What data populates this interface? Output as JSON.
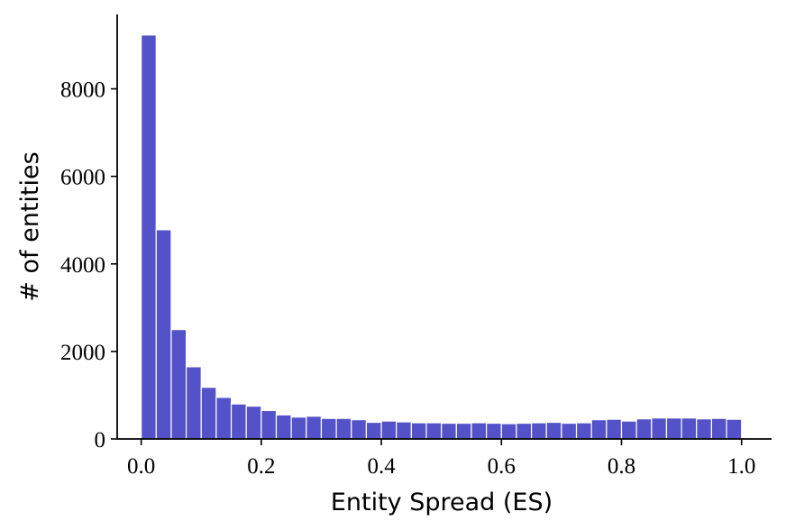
{
  "chart_data": {
    "type": "bar",
    "title": "",
    "xlabel": "Entity Spread (ES)",
    "ylabel": "# of entities",
    "bin_width": 0.025,
    "x": [
      0.0125,
      0.0375,
      0.0625,
      0.0875,
      0.1125,
      0.1375,
      0.1625,
      0.1875,
      0.2125,
      0.2375,
      0.2625,
      0.2875,
      0.3125,
      0.3375,
      0.3625,
      0.3875,
      0.4125,
      0.4375,
      0.4625,
      0.4875,
      0.5125,
      0.5375,
      0.5625,
      0.5875,
      0.6125,
      0.6375,
      0.6625,
      0.6875,
      0.7125,
      0.7375,
      0.7625,
      0.7875,
      0.8125,
      0.8375,
      0.8625,
      0.8875,
      0.9125,
      0.9375,
      0.9625,
      0.9875
    ],
    "values": [
      9230,
      4780,
      2500,
      1650,
      1180,
      950,
      800,
      750,
      650,
      550,
      500,
      520,
      470,
      470,
      440,
      380,
      410,
      390,
      370,
      370,
      360,
      360,
      370,
      360,
      350,
      360,
      370,
      380,
      360,
      370,
      440,
      450,
      410,
      460,
      480,
      480,
      480,
      460,
      470,
      450
    ],
    "xlim": [
      -0.04,
      1.05
    ],
    "ylim": [
      0,
      9700
    ],
    "xticks": [
      0.0,
      0.2,
      0.4,
      0.6,
      0.8,
      1.0
    ],
    "xtick_labels": [
      "0.0",
      "0.2",
      "0.4",
      "0.6",
      "0.8",
      "1.0"
    ],
    "yticks": [
      0,
      2000,
      4000,
      6000,
      8000
    ],
    "ytick_labels": [
      "0",
      "2000",
      "4000",
      "6000",
      "8000"
    ],
    "grid": false,
    "legend": "none",
    "bar_color": "#5352c8"
  }
}
